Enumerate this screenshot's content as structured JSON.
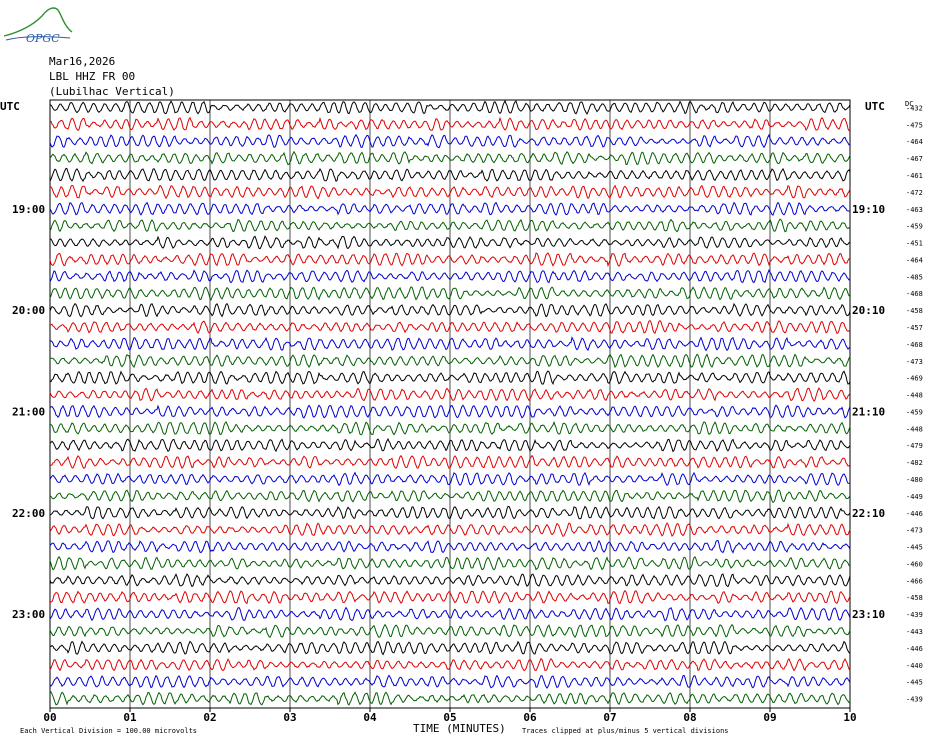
{
  "header": {
    "logo_text": "OPGC",
    "date": "Mar16,2026",
    "station": "LBL HHZ FR 00",
    "location": "(Lubilhac Vertical)"
  },
  "labels": {
    "utc_left": "UTC",
    "utc_right": "UTC",
    "dc_header": "DC",
    "xlabel": "TIME (MINUTES)",
    "footer_scale": "Each Vertical Division =  100.00 microvolts",
    "footer_clip": "Traces clipped at plus/minus 5 vertical divisions"
  },
  "colors": {
    "trace_cycle": [
      "#000000",
      "#e00000",
      "#0000d0",
      "#006000"
    ],
    "grid": "#000000",
    "logo": "#2f8f2f",
    "logo_text": "#2a5ea8"
  },
  "chart_data": {
    "type": "line",
    "title": "",
    "xlabel": "TIME (MINUTES)",
    "ylabel": "",
    "xlim": [
      0,
      10
    ],
    "x_ticks": [
      "00",
      "01",
      "02",
      "03",
      "04",
      "05",
      "06",
      "07",
      "08",
      "09",
      "10"
    ],
    "row_count": 36,
    "left_time_labels": [
      {
        "row": 6,
        "text": "19:00"
      },
      {
        "row": 12,
        "text": "20:00"
      },
      {
        "row": 18,
        "text": "21:00"
      },
      {
        "row": 24,
        "text": "22:00"
      },
      {
        "row": 30,
        "text": "23:00"
      }
    ],
    "right_time_labels": [
      {
        "row": 6,
        "text": "19:10"
      },
      {
        "row": 12,
        "text": "20:10"
      },
      {
        "row": 18,
        "text": "21:10"
      },
      {
        "row": 24,
        "text": "22:10"
      },
      {
        "row": 30,
        "text": "23:10"
      }
    ],
    "dc_offsets": [
      -432,
      -475,
      -464,
      -467,
      -461,
      -472,
      -463,
      -459,
      -451,
      -464,
      -485,
      -468,
      -458,
      -457,
      -468,
      -473,
      -469,
      -448,
      -459,
      -448,
      -479,
      -482,
      -480,
      -449,
      -446,
      -473,
      -445,
      -460,
      -466,
      -458,
      -439,
      -443,
      -446,
      -440,
      -445,
      -439
    ],
    "amplitude_unit": "microvolts",
    "vertical_division": 100.0
  }
}
